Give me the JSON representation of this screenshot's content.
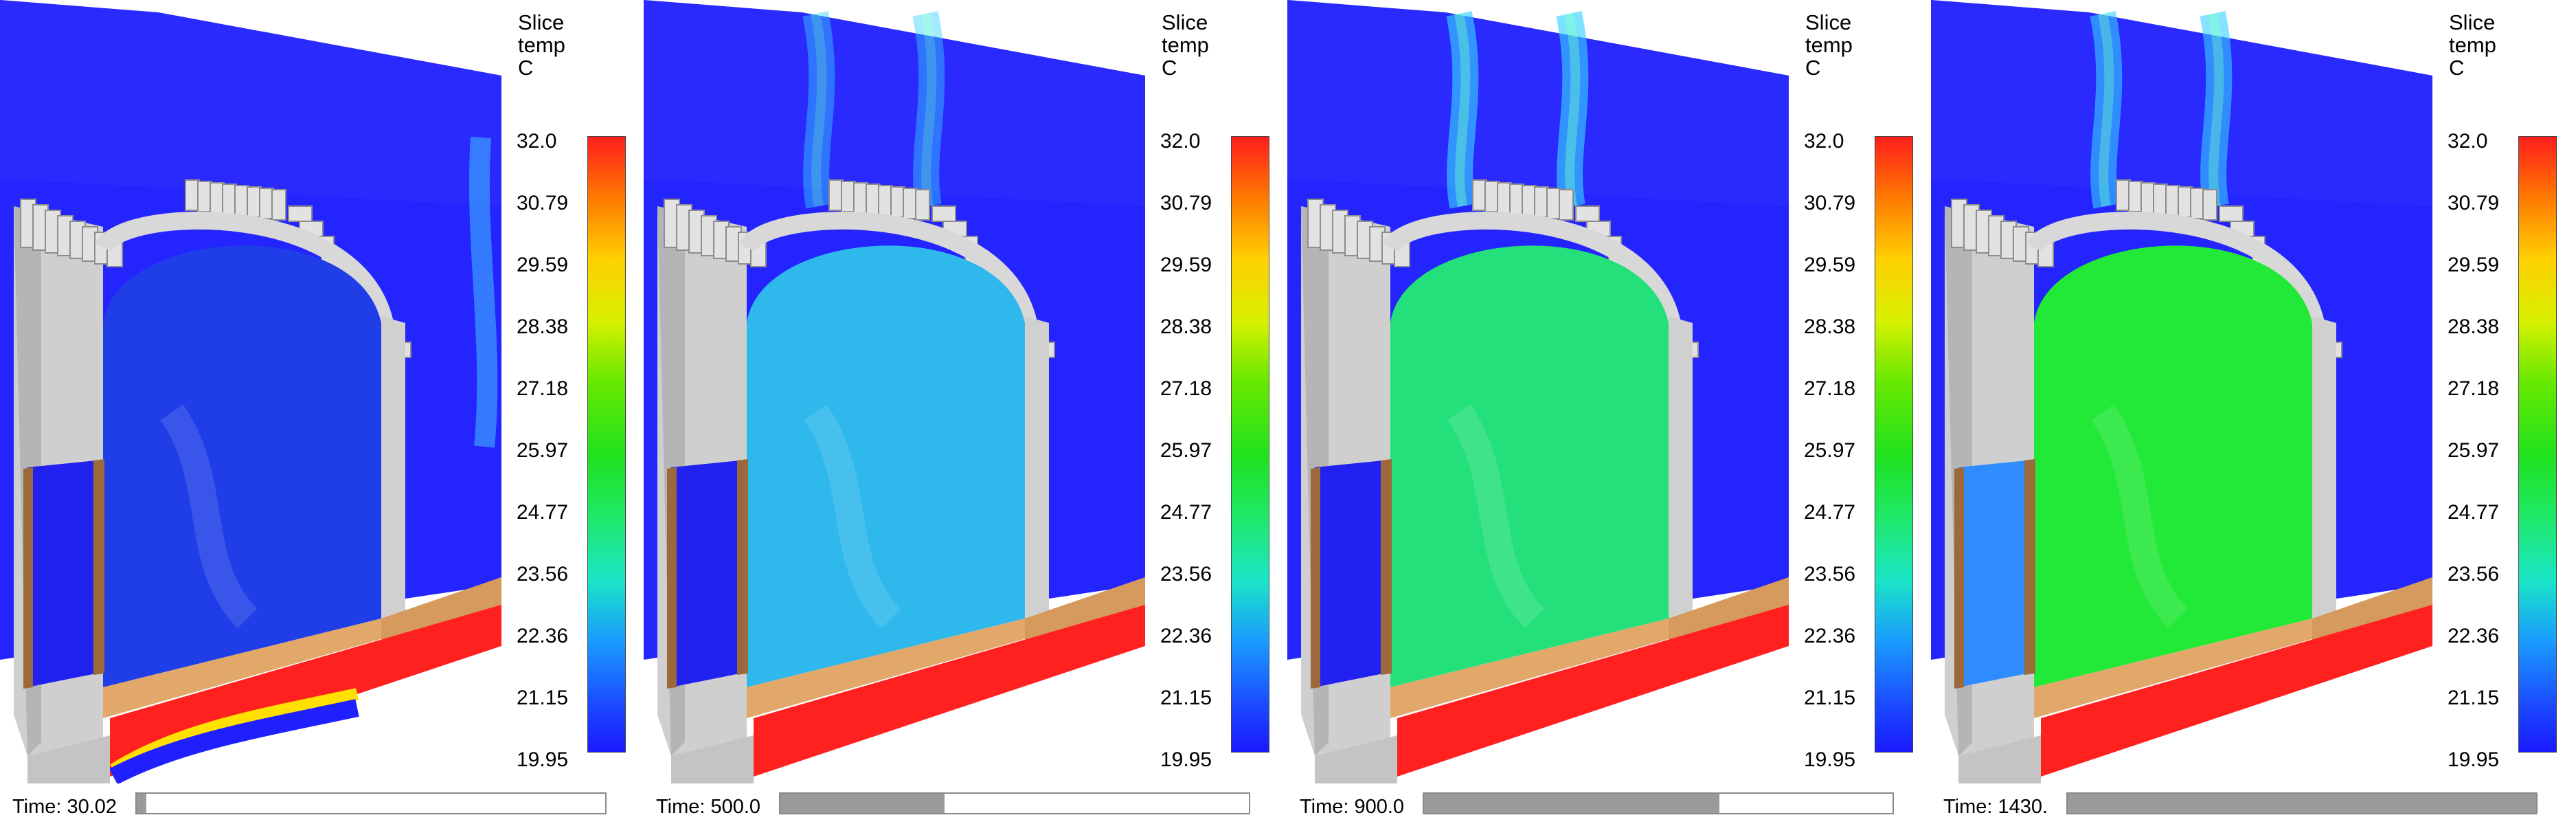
{
  "colorbar": {
    "title": [
      "Slice",
      "temp",
      "C"
    ],
    "ticks": [
      "32.0",
      "30.79",
      "29.59",
      "28.38",
      "27.18",
      "25.97",
      "24.77",
      "23.56",
      "22.36",
      "21.15",
      "19.95"
    ]
  },
  "panels": [
    {
      "time_label": "Time: 30.02",
      "time_progress": 0.02,
      "interior_color": "#1f3ee8",
      "floor_color": "#ff2020",
      "plume": 0.0
    },
    {
      "time_label": "Time: 500.0",
      "time_progress": 0.35,
      "interior_color": "#2fb8ec",
      "floor_color": "#ff2020",
      "plume": 0.6
    },
    {
      "time_label": "Time: 900.0",
      "time_progress": 0.63,
      "interior_color": "#24e07a",
      "floor_color": "#ff2020",
      "plume": 0.85
    },
    {
      "time_label": "Time: 1430.",
      "time_progress": 1.0,
      "interior_color": "#22e838",
      "floor_color": "#ff2020",
      "plume": 0.8
    }
  ]
}
